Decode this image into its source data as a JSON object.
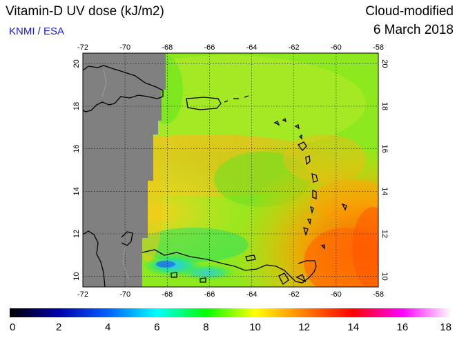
{
  "header": {
    "title": "Vitamin-D UV dose (kJ/m2)",
    "organization": "KNMI / ESA",
    "product_mode": "Cloud-modified",
    "date": "6 March 2018"
  },
  "map": {
    "lon_range": [
      -72,
      -58
    ],
    "lat_range": [
      9.5,
      20.5
    ],
    "lon_ticks": [
      "-72",
      "-70",
      "-68",
      "-66",
      "-64",
      "-62",
      "-60",
      "-58"
    ],
    "lat_ticks": [
      "10",
      "12",
      "14",
      "16",
      "18",
      "20"
    ],
    "no_data_color": "#808080",
    "grid": "dotted",
    "islands": [
      "Hispaniola",
      "Puerto Rico",
      "Lesser Antilles",
      "Trinidad",
      "Venezuela coast"
    ]
  },
  "colorbar": {
    "min": 0,
    "max": 18,
    "labels": [
      "0",
      "2",
      "4",
      "6",
      "8",
      "10",
      "12",
      "14",
      "16",
      "18"
    ],
    "colors": [
      "#000000",
      "#0000ff",
      "#00ffff",
      "#00ff00",
      "#ffff00",
      "#ff8000",
      "#ff0000",
      "#ff00ff",
      "#ffffff"
    ]
  }
}
